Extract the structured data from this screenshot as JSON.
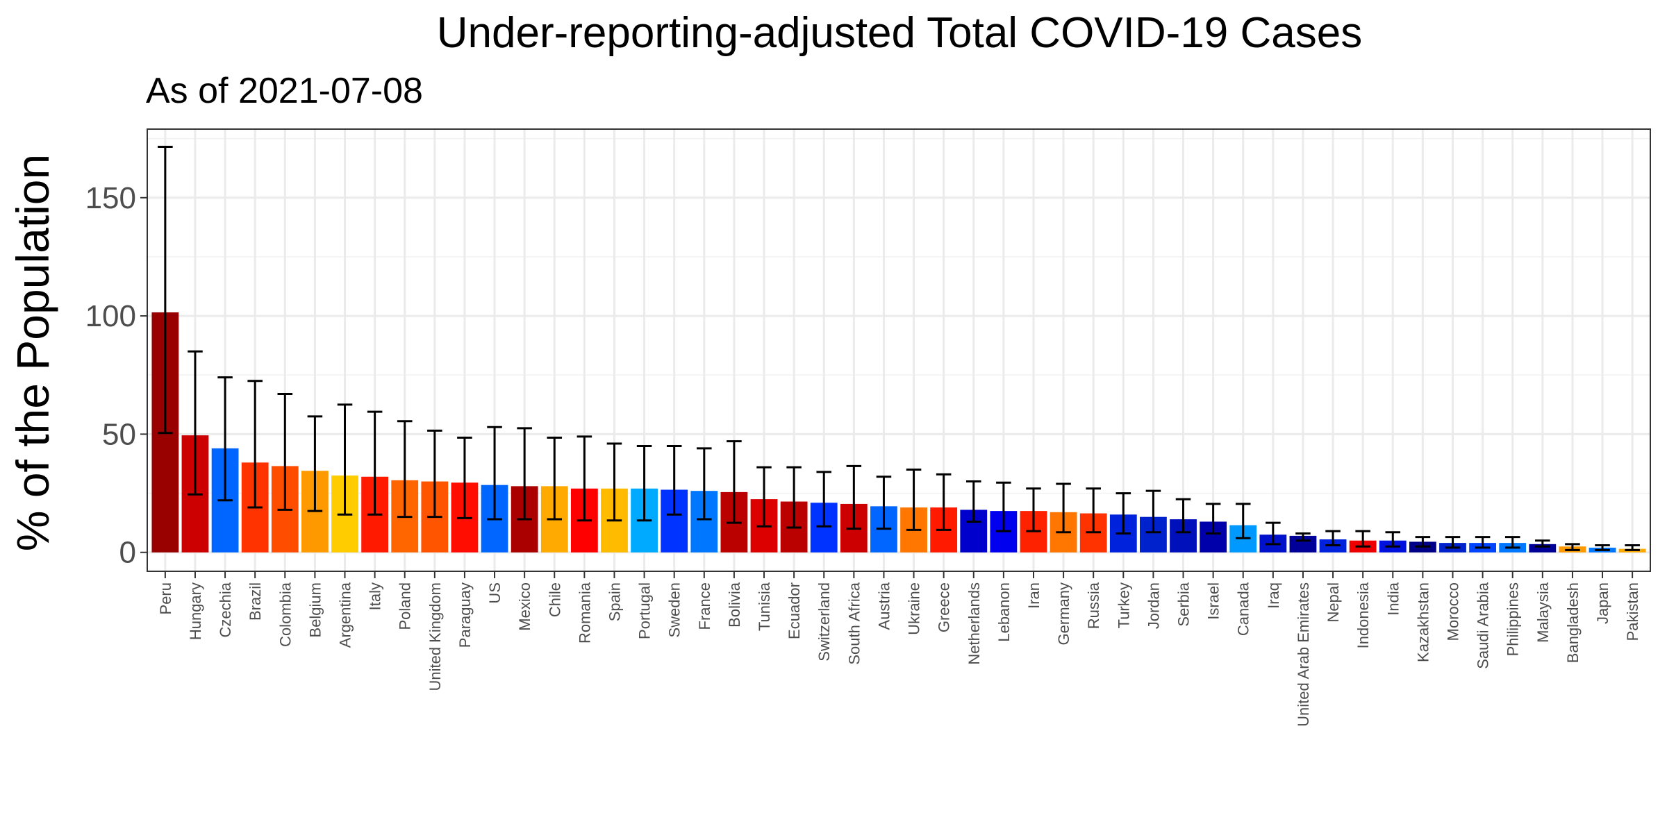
{
  "chart_data": {
    "type": "bar",
    "title": "Under-reporting-adjusted Total COVID-19 Cases",
    "subtitle": "As of 2021-07-08",
    "xlabel": "",
    "ylabel": "% of the Population",
    "ylim": [
      -8,
      179
    ],
    "yticks": [
      0,
      50,
      100,
      150
    ],
    "grid": true,
    "categories": [
      "Peru",
      "Hungary",
      "Czechia",
      "Brazil",
      "Colombia",
      "Belgium",
      "Argentina",
      "Italy",
      "Poland",
      "United Kingdom",
      "Paraguay",
      "US",
      "Mexico",
      "Chile",
      "Romania",
      "Spain",
      "Portugal",
      "Sweden",
      "France",
      "Bolivia",
      "Tunisia",
      "Ecuador",
      "Switzerland",
      "South Africa",
      "Austria",
      "Ukraine",
      "Greece",
      "Netherlands",
      "Lebanon",
      "Iran",
      "Germany",
      "Russia",
      "Turkey",
      "Jordan",
      "Serbia",
      "Israel",
      "Canada",
      "Iraq",
      "United Arab Emirates",
      "Nepal",
      "Indonesia",
      "India",
      "Kazakhstan",
      "Morocco",
      "Saudi Arabia",
      "Philippines",
      "Malaysia",
      "Bangladesh",
      "Japan",
      "Pakistan"
    ],
    "values": [
      101.5,
      49.5,
      44,
      38,
      36.5,
      34.5,
      32.5,
      32,
      30.5,
      30,
      29.5,
      28.5,
      28,
      28,
      27,
      27,
      27,
      26.5,
      26,
      25.5,
      22.5,
      21.5,
      21,
      20.5,
      19.5,
      19,
      19,
      18,
      17.5,
      17.5,
      17,
      16.5,
      16,
      15,
      14,
      13,
      11.5,
      7.5,
      7,
      5.5,
      5,
      5,
      4.5,
      4,
      4,
      4,
      3.5,
      2.5,
      2,
      1.5
    ],
    "lower": [
      50.5,
      24.5,
      22,
      19,
      18,
      17.5,
      16,
      16,
      15,
      15,
      14.5,
      14,
      14,
      14,
      13.5,
      13.5,
      13.5,
      16,
      14,
      12.5,
      11,
      10.5,
      11,
      10,
      10,
      9.5,
      9.5,
      13,
      9,
      9,
      8.5,
      8.5,
      8,
      8.5,
      8.5,
      8,
      6,
      3.5,
      5,
      3,
      2.5,
      2.5,
      2.5,
      2,
      2,
      2,
      2.5,
      1,
      1,
      1
    ],
    "upper": [
      171.5,
      85,
      74,
      72.5,
      67,
      57.5,
      62.5,
      59.5,
      55.5,
      51.5,
      48.5,
      53,
      52.5,
      48.5,
      49,
      46,
      45,
      45,
      44,
      47,
      36,
      36,
      34,
      36.5,
      32,
      35,
      33,
      30,
      29.5,
      27,
      29,
      27,
      25,
      26,
      22.5,
      20.5,
      20.5,
      12.5,
      8,
      9,
      9,
      8.5,
      6.5,
      6.5,
      6.5,
      6.5,
      5,
      3.5,
      3,
      3
    ],
    "colors": [
      "#990000",
      "#CC0000",
      "#0066FF",
      "#FF3300",
      "#FF4D00",
      "#FF9900",
      "#FFCC00",
      "#FF1A00",
      "#FF6600",
      "#FF5500",
      "#FF0D00",
      "#0066FF",
      "#AA0000",
      "#FFAA00",
      "#FF0000",
      "#FFBB00",
      "#00AAFF",
      "#0033FF",
      "#0077FF",
      "#BB0000",
      "#DD0000",
      "#BB0000",
      "#0033FF",
      "#CC0000",
      "#0066FF",
      "#FF7700",
      "#FF1A00",
      "#0000CC",
      "#0000EE",
      "#FF2200",
      "#FF7700",
      "#FF3300",
      "#0022DD",
      "#0022CC",
      "#0011BB",
      "#0000AA",
      "#0099FF",
      "#0011CC",
      "#000099",
      "#0022DD",
      "#EE0000",
      "#0011DD",
      "#000088",
      "#0022CC",
      "#0044FF",
      "#0077FF",
      "#000099",
      "#FF9900",
      "#0077FF",
      "#FFAA00"
    ]
  }
}
